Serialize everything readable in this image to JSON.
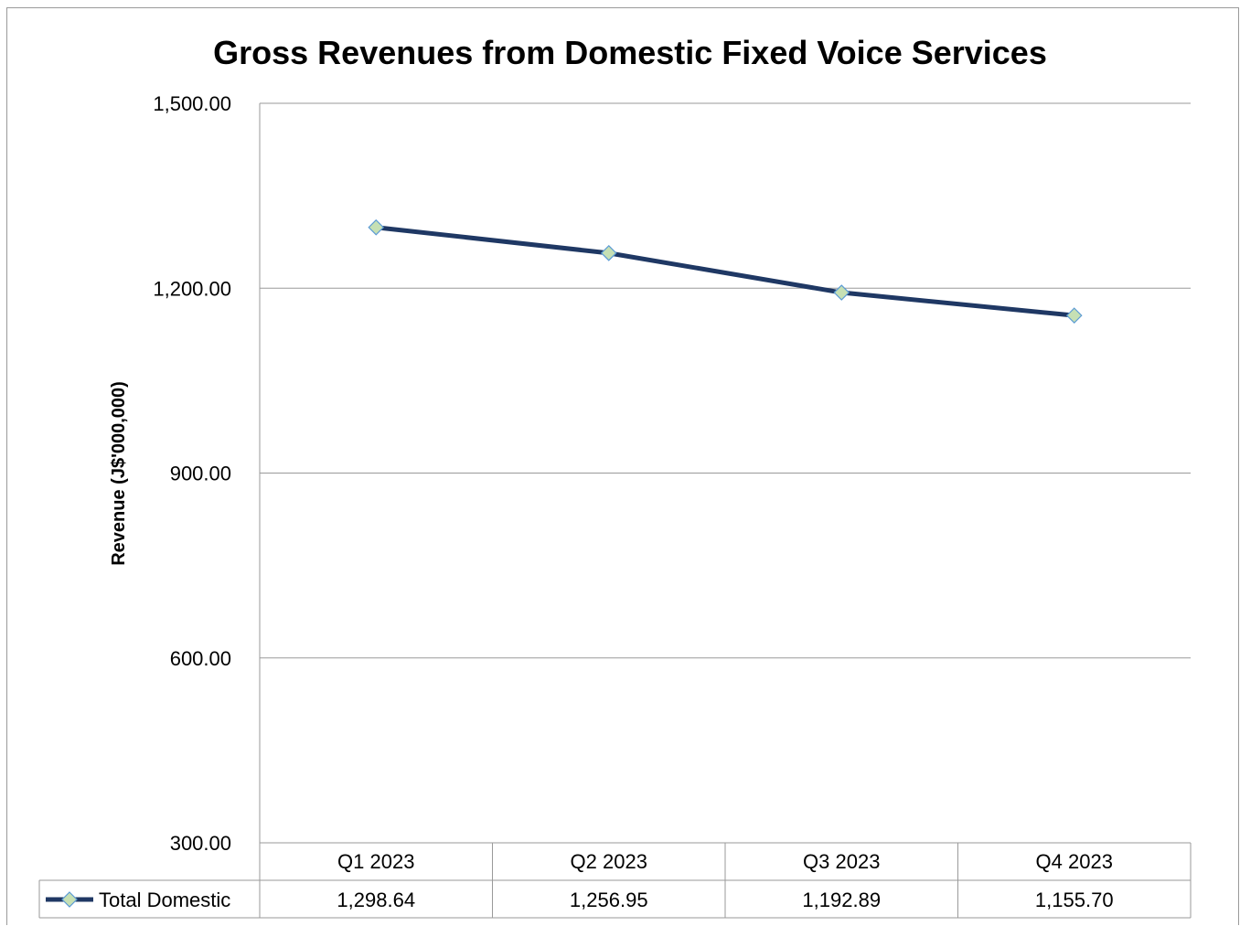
{
  "chart_data": {
    "type": "line",
    "title": "Gross Revenues from Domestic Fixed Voice Services",
    "xlabel": "",
    "ylabel": "Revenue (J$'000,000)",
    "categories": [
      "Q1 2023",
      "Q2 2023",
      "Q3 2023",
      "Q4 2023"
    ],
    "series": [
      {
        "name": "Total Domestic",
        "values": [
          1298.64,
          1256.95,
          1192.89,
          1155.7
        ],
        "value_labels": [
          "1,298.64",
          "1,256.95",
          "1,192.89",
          "1,155.70"
        ],
        "line_color": "#1f3864",
        "marker": "diamond",
        "marker_fill": "#c6e0b4",
        "marker_stroke": "#5b9bd5"
      }
    ],
    "ylim": [
      300,
      1500
    ],
    "yticks": [
      300,
      600,
      900,
      1200,
      1500
    ],
    "ytick_labels": [
      "300.00",
      "600.00",
      "900.00",
      "1,200.00",
      "1,500.00"
    ],
    "grid": true,
    "legend": "data-table-left",
    "gridline_color": "#9a9a9a"
  }
}
